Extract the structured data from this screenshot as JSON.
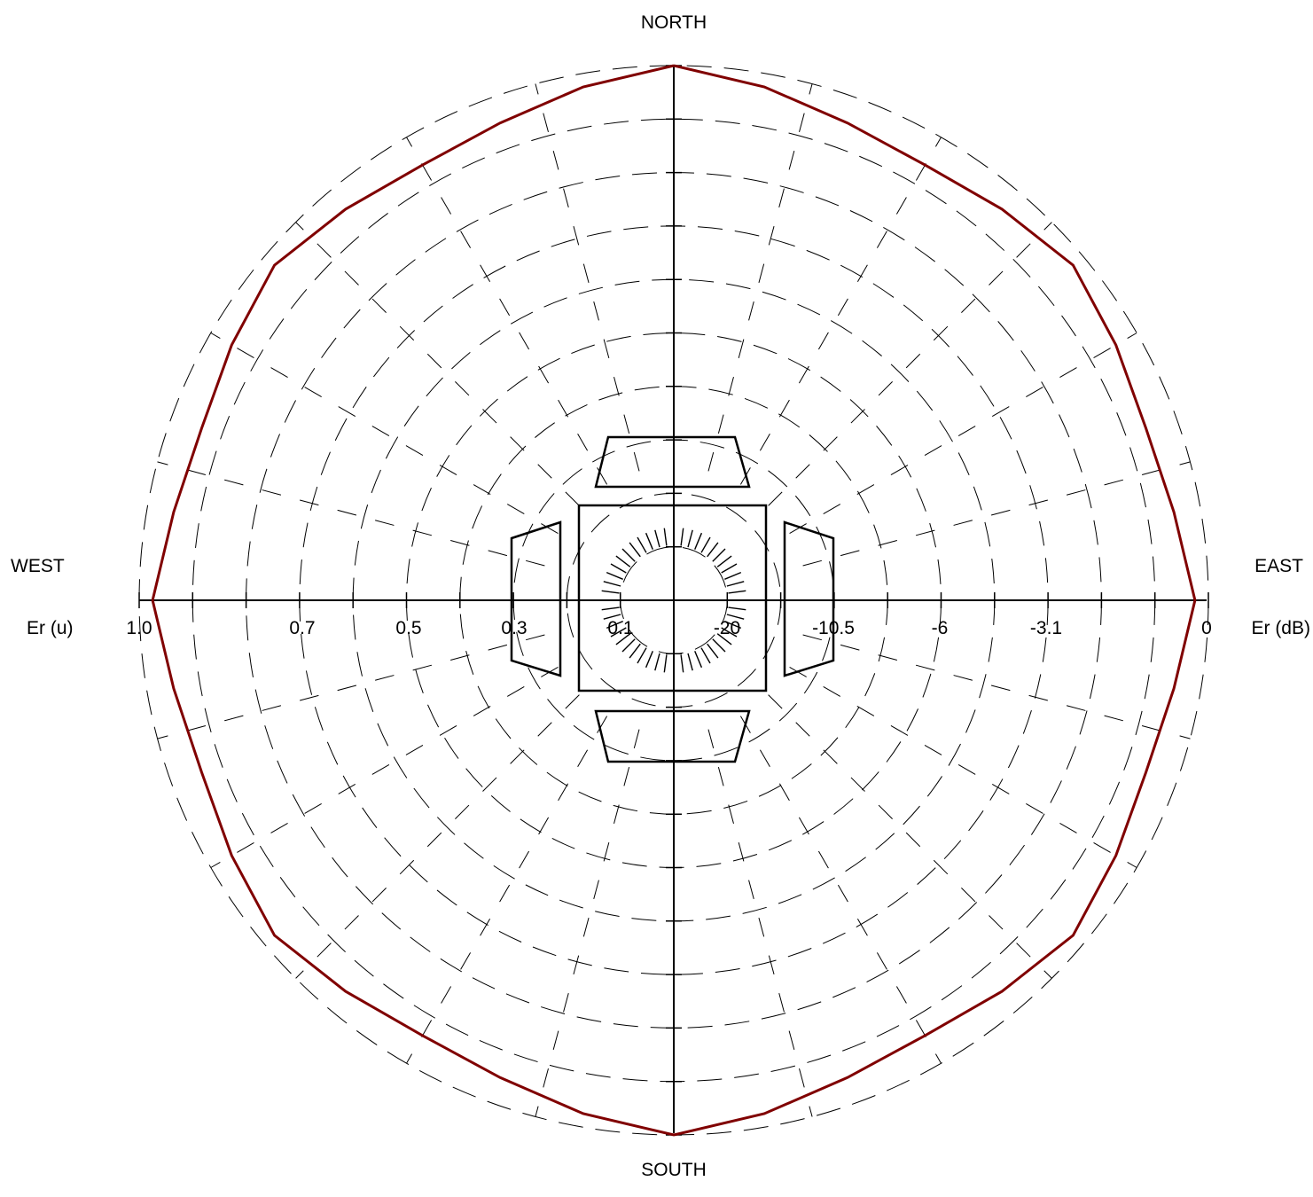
{
  "compass": {
    "north": "NORTH",
    "south": "SOUTH",
    "west": "WEST",
    "east": "EAST"
  },
  "axis_labels": {
    "left": "Er (u)",
    "right": "Er (dB)"
  },
  "chart_data": {
    "type": "polar",
    "left_scale_ticks": [
      "1.0",
      "0.7",
      "0.5",
      "0.3",
      "0.1"
    ],
    "right_scale_ticks": [
      "-20",
      "-10.5",
      "-6",
      "-3.1",
      "0"
    ],
    "rings_linear": [
      0.1,
      0.2,
      0.3,
      0.4,
      0.5,
      0.6,
      0.7,
      0.8,
      0.9,
      1.0
    ],
    "ring_dashing": "dashed",
    "series": [
      {
        "color": "#800000",
        "angles_deg": [
          0,
          10,
          20,
          30,
          40,
          50,
          60,
          70,
          80,
          90,
          100,
          110,
          120,
          130,
          140,
          150,
          160,
          170,
          180,
          190,
          200,
          210,
          220,
          230,
          240,
          250,
          260,
          270,
          280,
          290,
          300,
          310,
          320,
          330,
          340,
          350,
          360
        ],
        "radius": [
          1.0,
          0.975,
          0.95,
          0.94,
          0.955,
          0.975,
          0.955,
          0.94,
          0.95,
          0.975,
          0.95,
          0.94,
          0.955,
          0.975,
          0.955,
          0.94,
          0.95,
          0.975,
          1.0,
          0.975,
          0.95,
          0.94,
          0.955,
          0.975,
          0.955,
          0.94,
          0.95,
          0.975,
          0.95,
          0.94,
          0.955,
          0.975,
          0.955,
          0.94,
          0.95,
          0.975,
          1.0
        ]
      }
    ]
  }
}
